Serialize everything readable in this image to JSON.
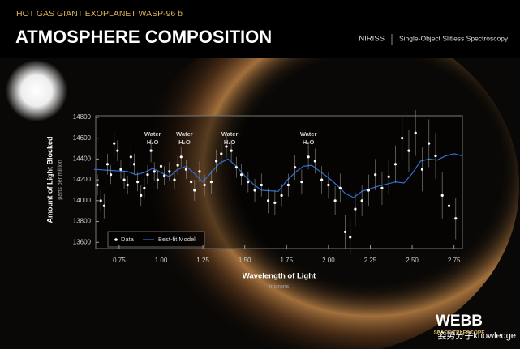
{
  "header": {
    "subtitle": "HOT GAS GIANT EXOPLANET WASP-96 b",
    "title": "ATMOSPHERE COMPOSITION",
    "instrument": "NIRISS",
    "mode": "Single-Object Slitless Spectroscopy"
  },
  "chart_data": {
    "type": "scatter",
    "x_label": "Wavelength of Light",
    "x_unit": "microns",
    "y_label": "Amount of Light Blocked",
    "y_unit": "parts per million",
    "xlim": [
      0.61,
      2.8
    ],
    "ylim": [
      13540,
      14815
    ],
    "xticks": [
      0.75,
      {
        "value": 1,
        "label": "1.00"
      },
      1.25,
      {
        "value": 1.5,
        "label": "1.50"
      },
      1.75,
      {
        "value": 2,
        "label": "2.00"
      },
      2.25,
      {
        "value": 2.5,
        "label": "2.50"
      },
      2.75
    ],
    "yticks": [
      13600,
      13800,
      14000,
      14200,
      14400,
      14600,
      14800
    ],
    "grid": false,
    "legend": "lower left",
    "annotations": [
      {
        "label": "Water",
        "formula": "H₂O",
        "x": 0.95
      },
      {
        "label": "Water",
        "formula": "H₂O",
        "x": 1.14
      },
      {
        "label": "Water",
        "formula": "H₂O",
        "x": 1.41
      },
      {
        "label": "Water",
        "formula": "H₂O",
        "x": 1.88
      }
    ],
    "series": [
      {
        "name": "Data",
        "color": "#ffffff",
        "x": [
          0.62,
          0.64,
          0.66,
          0.68,
          0.7,
          0.72,
          0.74,
          0.76,
          0.78,
          0.8,
          0.82,
          0.84,
          0.86,
          0.88,
          0.9,
          0.92,
          0.94,
          0.96,
          0.98,
          1.0,
          1.02,
          1.05,
          1.08,
          1.1,
          1.12,
          1.15,
          1.18,
          1.2,
          1.23,
          1.26,
          1.3,
          1.33,
          1.36,
          1.39,
          1.42,
          1.45,
          1.48,
          1.52,
          1.56,
          1.6,
          1.64,
          1.68,
          1.72,
          1.76,
          1.8,
          1.84,
          1.88,
          1.92,
          1.96,
          2.0,
          2.04,
          2.07,
          2.1,
          2.13,
          2.16,
          2.2,
          2.24,
          2.28,
          2.32,
          2.36,
          2.4,
          2.44,
          2.48,
          2.52,
          2.56,
          2.6,
          2.64,
          2.68,
          2.72,
          2.76
        ],
        "values": [
          14150,
          14000,
          13950,
          14350,
          14250,
          14550,
          14480,
          14300,
          14200,
          14150,
          14420,
          14350,
          14180,
          14050,
          14120,
          14250,
          14480,
          14280,
          14200,
          14330,
          14240,
          14280,
          14200,
          14340,
          14420,
          14300,
          14180,
          14100,
          14280,
          14150,
          14180,
          14380,
          14450,
          14520,
          14480,
          14320,
          14250,
          14180,
          14100,
          14150,
          14000,
          13980,
          14050,
          14150,
          14320,
          14180,
          14420,
          14380,
          14200,
          14150,
          14000,
          14120,
          13700,
          13650,
          13920,
          14000,
          14100,
          14250,
          14120,
          14230,
          14350,
          14600,
          14480,
          14650,
          14300,
          14550,
          14430,
          14050,
          13950,
          13830
        ],
        "errors": [
          100,
          110,
          120,
          100,
          90,
          110,
          100,
          90,
          90,
          90,
          100,
          100,
          90,
          100,
          100,
          90,
          110,
          90,
          90,
          100,
          90,
          90,
          90,
          90,
          100,
          90,
          90,
          100,
          100,
          100,
          110,
          110,
          110,
          110,
          100,
          100,
          100,
          100,
          110,
          110,
          120,
          120,
          110,
          110,
          120,
          120,
          120,
          120,
          130,
          130,
          140,
          140,
          160,
          170,
          160,
          150,
          150,
          150,
          160,
          170,
          180,
          200,
          200,
          220,
          210,
          230,
          220,
          220,
          220,
          200
        ]
      },
      {
        "name": "Best-fit Model",
        "color": "#2f6fd6",
        "x": [
          0.6,
          0.7,
          0.8,
          0.85,
          0.9,
          0.95,
          1.0,
          1.05,
          1.1,
          1.15,
          1.2,
          1.25,
          1.3,
          1.35,
          1.4,
          1.45,
          1.5,
          1.55,
          1.6,
          1.7,
          1.75,
          1.8,
          1.85,
          1.9,
          1.95,
          2.0,
          2.05,
          2.1,
          2.15,
          2.2,
          2.3,
          2.4,
          2.45,
          2.5,
          2.55,
          2.6,
          2.65,
          2.7,
          2.75,
          2.8
        ],
        "values": [
          14300,
          14290,
          14280,
          14250,
          14270,
          14310,
          14270,
          14230,
          14300,
          14330,
          14260,
          14180,
          14270,
          14360,
          14400,
          14330,
          14240,
          14160,
          14100,
          14090,
          14190,
          14270,
          14330,
          14340,
          14280,
          14220,
          14150,
          14070,
          14030,
          14090,
          14140,
          14180,
          14170,
          14260,
          14380,
          14400,
          14390,
          14430,
          14450,
          14430
        ]
      }
    ]
  },
  "logo": {
    "name": "WEBB",
    "tagline": "SPACE TELESCOPE"
  },
  "watermark": "姿势分子knowledge"
}
